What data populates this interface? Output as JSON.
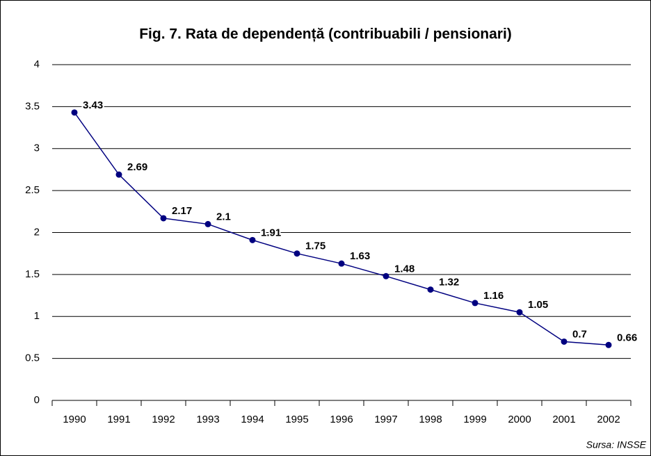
{
  "chart_data": {
    "type": "line",
    "title": "Fig. 7. Rata de dependență (contribuabili / pensionari)",
    "source": "Sursa: INSSE",
    "categories": [
      "1990",
      "1991",
      "1992",
      "1993",
      "1994",
      "1995",
      "1996",
      "1997",
      "1998",
      "1999",
      "2000",
      "2001",
      "2002"
    ],
    "series": [
      {
        "name": "Rata de dependență",
        "color": "#000080",
        "values": [
          3.43,
          2.69,
          2.17,
          2.1,
          1.91,
          1.75,
          1.63,
          1.48,
          1.32,
          1.16,
          1.05,
          0.7,
          0.66
        ]
      }
    ],
    "ylim": [
      0,
      4
    ],
    "yticks": [
      0,
      0.5,
      1,
      1.5,
      2,
      2.5,
      3,
      3.5,
      4
    ],
    "grid": true
  }
}
